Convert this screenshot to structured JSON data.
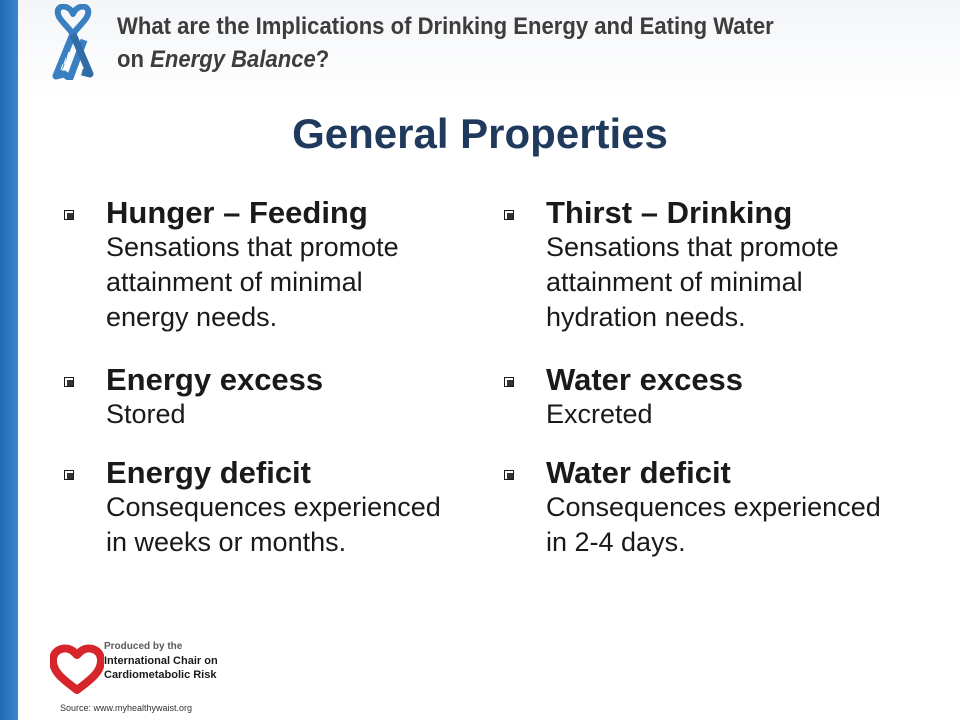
{
  "header": {
    "title_line1": "What are the Implications of Drinking Energy and Eating Water",
    "title_line2_prefix": "on ",
    "title_line2_emphasis": "Energy Balance",
    "title_line2_suffix": "?",
    "ribbon_icon": "awareness-ribbon-icon",
    "ribbon_color": "#3a7fc0"
  },
  "page_title": "General Properties",
  "columns": [
    {
      "items": [
        {
          "title": "Hunger – Feeding",
          "description": "Sensations that promote attainment of minimal energy needs."
        },
        {
          "title": "Energy excess",
          "description": "Stored"
        },
        {
          "title": "Energy deficit",
          "description": "Consequences experienced in weeks or months."
        }
      ]
    },
    {
      "items": [
        {
          "title": "Thirst – Drinking",
          "description": "Sensations that promote attainment of minimal hydration needs."
        },
        {
          "title": "Water excess",
          "description": "Excreted"
        },
        {
          "title": "Water deficit",
          "description": "Consequences experienced in 2-4 days."
        }
      ]
    }
  ],
  "footer": {
    "logo_line1": "Produced by the",
    "logo_line2": "International Chair on",
    "logo_line3": "Cardiometabolic Risk",
    "logo_icon": "heart-logo-icon",
    "logo_color": "#d6252b",
    "source": "Source: www.myhealthywaist.org"
  },
  "colors": {
    "accent_blue": "#2a78c2",
    "title_navy": "#1f3a5c"
  }
}
